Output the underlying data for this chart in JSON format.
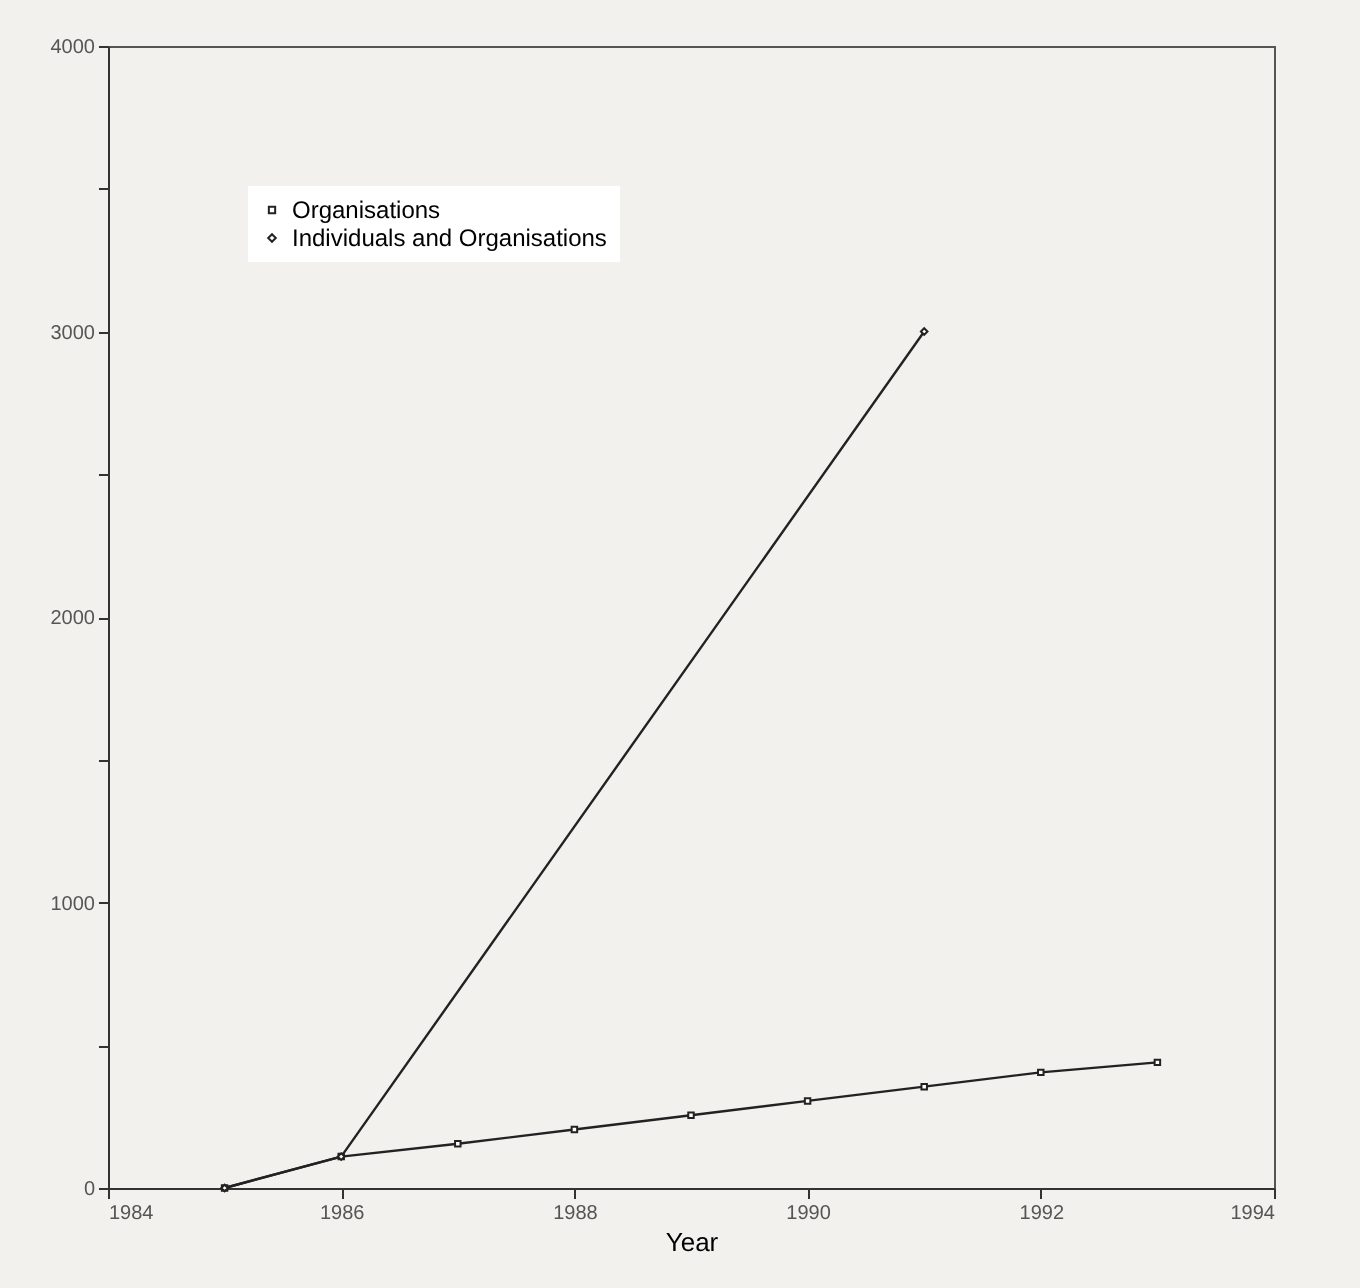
{
  "chart_data": {
    "type": "line",
    "xlabel": "Year",
    "xlim": [
      1984,
      1994
    ],
    "xticks": [
      1984,
      1986,
      1988,
      1990,
      1992,
      1994
    ],
    "ylim": [
      0,
      4000
    ],
    "yticks": [
      0,
      {
        "value": 500,
        "label": null
      },
      1000,
      {
        "value": 1500,
        "label": null
      },
      2000,
      {
        "value": 2500,
        "label": null
      },
      3000,
      {
        "value": 3500,
        "label": null
      },
      4000
    ],
    "grid": false,
    "legend": "top left",
    "series": [
      {
        "name": "Organisations",
        "color": "#222222",
        "marker": "square",
        "x": [
          1985,
          1986,
          1987,
          1988,
          1989,
          1990,
          1991,
          1992,
          1993
        ],
        "values": [
          0,
          110,
          155,
          205,
          255,
          305,
          355,
          405,
          440
        ]
      },
      {
        "name": "Individuals and Organisations",
        "color": "#222222",
        "marker": "diamond",
        "x": [
          1985,
          1986,
          1991
        ],
        "values": [
          0,
          110,
          3000
        ]
      }
    ]
  }
}
